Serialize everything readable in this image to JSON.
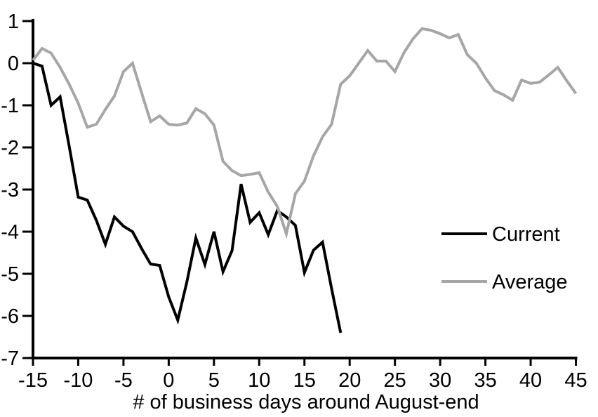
{
  "chart_data": {
    "type": "line",
    "title": "",
    "xlabel": "# of business days around August-end",
    "ylabel": "",
    "xlim": [
      -15,
      45
    ],
    "ylim": [
      -7,
      1
    ],
    "xticks": [
      -15,
      -10,
      -5,
      0,
      5,
      10,
      15,
      20,
      25,
      30,
      35,
      40,
      45
    ],
    "yticks": [
      1,
      0,
      -1,
      -2,
      -3,
      -4,
      -5,
      -6,
      -7
    ],
    "grid": false,
    "legend_position": "middle-right",
    "axis_color": "#000000",
    "x": [
      -15,
      -14,
      -13,
      -12,
      -11,
      -10,
      -9,
      -8,
      -7,
      -6,
      -5,
      -4,
      -3,
      -2,
      -1,
      0,
      1,
      2,
      3,
      4,
      5,
      6,
      7,
      8,
      9,
      10,
      11,
      12,
      13,
      14,
      15,
      16,
      17,
      18,
      19,
      20,
      21,
      22,
      23,
      24,
      25,
      26,
      27,
      28,
      29,
      30,
      31,
      32,
      33,
      34,
      35,
      36,
      37,
      38,
      39,
      40,
      41,
      42,
      43,
      44,
      45
    ],
    "series": [
      {
        "name": "Current",
        "color": "#000000",
        "values": [
          0,
          -0.07,
          -1,
          -0.8,
          -1.97,
          -3.18,
          -3.25,
          -3.73,
          -4.3,
          -3.65,
          -3.87,
          -4,
          -4.4,
          -4.77,
          -4.8,
          -5.55,
          -6.1,
          -5.2,
          -4.15,
          -4.78,
          -4,
          -4.95,
          -4.45,
          -2.87,
          -3.78,
          -3.55,
          -4.07,
          -3.5,
          -3.65,
          -3.85,
          -4.97,
          -4.44,
          -4.25,
          -5.35,
          -6.4,
          null,
          null,
          null,
          null,
          null,
          null,
          null,
          null,
          null,
          null,
          null,
          null,
          null,
          null,
          null,
          null,
          null,
          null,
          null,
          null,
          null,
          null,
          null,
          null,
          null,
          null
        ]
      },
      {
        "name": "Average",
        "color": "#a6a6a6",
        "values": [
          0.07,
          0.35,
          0.24,
          -0.1,
          -0.5,
          -0.95,
          -1.52,
          -1.45,
          -1.1,
          -0.78,
          -0.2,
          0,
          -0.7,
          -1.39,
          -1.25,
          -1.45,
          -1.47,
          -1.42,
          -1.08,
          -1.2,
          -1.47,
          -2.33,
          -2.55,
          -2.67,
          -2.64,
          -2.6,
          -3.06,
          -3.4,
          -4.05,
          -3.1,
          -2.8,
          -2.2,
          -1.75,
          -1.45,
          -0.5,
          -0.3,
          0,
          0.3,
          0.05,
          0.05,
          -0.2,
          0.25,
          0.58,
          0.82,
          0.78,
          0.7,
          0.6,
          0.68,
          0.2,
          0,
          -0.35,
          -0.65,
          -0.75,
          -0.88,
          -0.4,
          -0.48,
          -0.45,
          -0.28,
          -0.1,
          -0.42,
          -0.72
        ]
      }
    ]
  }
}
